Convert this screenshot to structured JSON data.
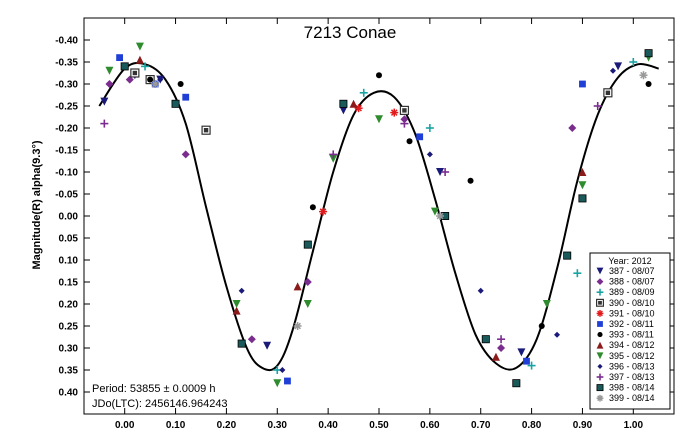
{
  "chart_data": {
    "type": "scatter",
    "title": "7213 Conae",
    "xlabel": "",
    "ylabel": "Magnitude(R) alpha(9.3°)",
    "xlim": [
      -0.08,
      1.08
    ],
    "ylim": [
      -0.45,
      0.45
    ],
    "y_inverted": true,
    "xticks": [
      0.0,
      0.1,
      0.2,
      0.3,
      0.4,
      0.5,
      0.6,
      0.7,
      0.8,
      0.9,
      1.0
    ],
    "xtick_labels": [
      "0.00",
      "0.10",
      "0.20",
      "0.30",
      "0.40",
      "0.50",
      "0.60",
      "0.70",
      "0.80",
      "0.90",
      "1.00"
    ],
    "yticks": [
      -0.4,
      -0.35,
      -0.3,
      -0.25,
      -0.2,
      -0.15,
      -0.1,
      -0.05,
      0.0,
      0.05,
      0.1,
      0.15,
      0.2,
      0.25,
      0.3,
      0.35,
      0.4
    ],
    "ytick_labels": [
      "-0.40",
      "-0.35",
      "-0.30",
      "-0.25",
      "-0.20",
      "-0.15",
      "-0.10",
      "-0.05",
      "0.00",
      "0.05",
      "0.10",
      "0.15",
      "0.20",
      "0.25",
      "0.30",
      "0.35",
      "0.40"
    ],
    "grid": false,
    "legend_placement": "bottom-right",
    "legend_title": "Year: 2012",
    "annotations": [
      "Period: 53855 ± 0.0009 h",
      "JDo(LTC): 2456146.964243"
    ],
    "fit_curve": {
      "points": [
        [
          -0.05,
          -0.25
        ],
        [
          0.0,
          -0.335
        ],
        [
          0.04,
          -0.345
        ],
        [
          0.08,
          -0.31
        ],
        [
          0.12,
          -0.21
        ],
        [
          0.16,
          -0.02
        ],
        [
          0.2,
          0.16
        ],
        [
          0.24,
          0.3
        ],
        [
          0.27,
          0.345
        ],
        [
          0.3,
          0.34
        ],
        [
          0.33,
          0.26
        ],
        [
          0.37,
          0.08
        ],
        [
          0.41,
          -0.1
        ],
        [
          0.45,
          -0.23
        ],
        [
          0.49,
          -0.28
        ],
        [
          0.53,
          -0.27
        ],
        [
          0.57,
          -0.19
        ],
        [
          0.61,
          -0.04
        ],
        [
          0.65,
          0.13
        ],
        [
          0.69,
          0.27
        ],
        [
          0.73,
          0.335
        ],
        [
          0.77,
          0.345
        ],
        [
          0.81,
          0.28
        ],
        [
          0.85,
          0.12
        ],
        [
          0.89,
          -0.08
        ],
        [
          0.93,
          -0.23
        ],
        [
          0.97,
          -0.315
        ],
        [
          1.01,
          -0.345
        ],
        [
          1.05,
          -0.335
        ]
      ]
    },
    "series": [
      {
        "name": "387 - 08/07",
        "color": "#1a1a7a",
        "marker": "tri-down",
        "points": [
          [
            -0.04,
            -0.26
          ],
          [
            0.02,
            -0.32
          ],
          [
            0.07,
            -0.31
          ],
          [
            0.28,
            0.295
          ],
          [
            0.43,
            -0.24
          ],
          [
            0.62,
            -0.1
          ],
          [
            0.78,
            0.31
          ],
          [
            0.97,
            -0.34
          ]
        ]
      },
      {
        "name": "388 - 08/07",
        "color": "#7b2d8f",
        "marker": "diamond",
        "points": [
          [
            -0.03,
            -0.3
          ],
          [
            0.01,
            -0.31
          ],
          [
            0.12,
            -0.14
          ],
          [
            0.25,
            0.28
          ],
          [
            0.36,
            0.15
          ],
          [
            0.55,
            -0.22
          ],
          [
            0.74,
            0.3
          ],
          [
            0.88,
            -0.2
          ]
        ]
      },
      {
        "name": "389 - 08/09",
        "color": "#1aa3a3",
        "marker": "plus",
        "points": [
          [
            0.04,
            -0.34
          ],
          [
            0.3,
            0.35
          ],
          [
            0.47,
            -0.28
          ],
          [
            0.6,
            -0.2
          ],
          [
            0.8,
            0.34
          ],
          [
            0.89,
            0.13
          ],
          [
            1.0,
            -0.35
          ]
        ]
      },
      {
        "name": "390 - 08/10",
        "color": "#333333",
        "marker": "square-open",
        "points": [
          [
            0.02,
            -0.325
          ],
          [
            0.05,
            -0.31
          ],
          [
            0.16,
            -0.195
          ],
          [
            0.55,
            -0.24
          ],
          [
            0.95,
            -0.28
          ]
        ]
      },
      {
        "name": "391 - 08/10",
        "color": "#e31a1c",
        "marker": "star",
        "points": [
          [
            0.39,
            -0.01
          ],
          [
            0.46,
            -0.245
          ],
          [
            0.53,
            -0.235
          ]
        ]
      },
      {
        "name": "392 - 08/11",
        "color": "#1f3fd6",
        "marker": "square",
        "points": [
          [
            -0.01,
            -0.36
          ],
          [
            0.06,
            -0.3
          ],
          [
            0.12,
            -0.27
          ],
          [
            0.32,
            0.375
          ],
          [
            0.58,
            -0.18
          ],
          [
            0.79,
            0.33
          ],
          [
            0.9,
            -0.3
          ]
        ]
      },
      {
        "name": "393 - 08/11",
        "color": "#000000",
        "marker": "circle",
        "points": [
          [
            0.05,
            -0.31
          ],
          [
            0.11,
            -0.3
          ],
          [
            0.37,
            -0.02
          ],
          [
            0.5,
            -0.32
          ],
          [
            0.56,
            -0.17
          ],
          [
            0.68,
            -0.08
          ],
          [
            0.82,
            0.25
          ],
          [
            1.03,
            -0.3
          ]
        ]
      },
      {
        "name": "394 - 08/12",
        "color": "#8b1a1a",
        "marker": "triangle",
        "points": [
          [
            0.03,
            -0.355
          ],
          [
            0.22,
            0.215
          ],
          [
            0.34,
            0.16
          ],
          [
            0.45,
            -0.255
          ],
          [
            0.73,
            0.32
          ],
          [
            0.9,
            -0.1
          ]
        ]
      },
      {
        "name": "395 - 08/12",
        "color": "#2e8b2e",
        "marker": "tri-down",
        "points": [
          [
            -0.03,
            -0.33
          ],
          [
            0.03,
            -0.385
          ],
          [
            0.22,
            0.2
          ],
          [
            0.3,
            0.38
          ],
          [
            0.36,
            0.2
          ],
          [
            0.41,
            -0.13
          ],
          [
            0.5,
            -0.22
          ],
          [
            0.61,
            -0.01
          ],
          [
            0.83,
            0.2
          ],
          [
            0.9,
            -0.07
          ],
          [
            1.03,
            -0.36
          ]
        ]
      },
      {
        "name": "396 - 08/13",
        "color": "#1a1a7a",
        "marker": "diamond-small",
        "points": [
          [
            0.07,
            -0.31
          ],
          [
            0.23,
            0.17
          ],
          [
            0.31,
            0.35
          ],
          [
            0.6,
            -0.14
          ],
          [
            0.7,
            0.17
          ],
          [
            0.85,
            0.27
          ],
          [
            0.96,
            -0.33
          ]
        ]
      },
      {
        "name": "397 - 08/13",
        "color": "#7b2d8f",
        "marker": "plus",
        "points": [
          [
            -0.04,
            -0.21
          ],
          [
            0.41,
            -0.14
          ],
          [
            0.55,
            -0.21
          ],
          [
            0.63,
            -0.1
          ],
          [
            0.74,
            0.28
          ],
          [
            0.93,
            -0.25
          ]
        ]
      },
      {
        "name": "398 - 08/14",
        "color": "#1a5a5a",
        "marker": "square-dark",
        "points": [
          [
            0.0,
            -0.34
          ],
          [
            0.1,
            -0.255
          ],
          [
            0.23,
            0.29
          ],
          [
            0.36,
            0.065
          ],
          [
            0.43,
            -0.255
          ],
          [
            0.63,
            0.0
          ],
          [
            0.71,
            0.28
          ],
          [
            0.77,
            0.38
          ],
          [
            0.87,
            0.09
          ],
          [
            0.9,
            -0.04
          ],
          [
            1.03,
            -0.37
          ]
        ]
      },
      {
        "name": "399 - 08/14",
        "color": "#999999",
        "marker": "star",
        "points": [
          [
            0.06,
            -0.3
          ],
          [
            0.34,
            0.25
          ],
          [
            0.62,
            0.0
          ],
          [
            1.02,
            -0.32
          ]
        ]
      }
    ]
  },
  "legend_entries": [
    "387 - 08/07",
    "388 - 08/07",
    "389 - 08/09",
    "390 - 08/10",
    "391 - 08/10",
    "392 - 08/11",
    "393 - 08/11",
    "394 - 08/12",
    "395 - 08/12",
    "396 - 08/13",
    "397 - 08/13",
    "398 - 08/14",
    "399 - 08/14"
  ]
}
